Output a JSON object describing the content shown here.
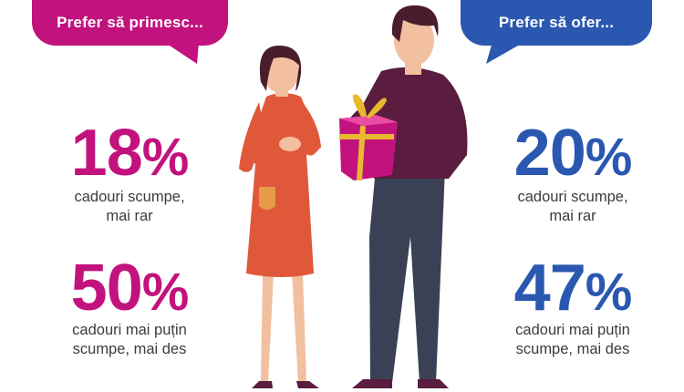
{
  "left": {
    "bubble": "Prefer să primesc...",
    "stats": [
      {
        "value": "18",
        "symbol": "%",
        "line1": "cadouri scumpe,",
        "line2": "mai rar"
      },
      {
        "value": "50",
        "symbol": "%",
        "line1": "cadouri mai puțin",
        "line2": "scumpe, mai des"
      }
    ]
  },
  "right": {
    "bubble": "Prefer să ofer...",
    "stats": [
      {
        "value": "20",
        "symbol": "%",
        "line1": "cadouri scumpe,",
        "line2": "mai rar"
      },
      {
        "value": "47",
        "symbol": "%",
        "line1": "cadouri mai puțin",
        "line2": "scumpe, mai des"
      }
    ]
  },
  "colors": {
    "magenta": "#c2127d",
    "blue": "#2a58b0",
    "woman_dress": "#e0583a",
    "man_sweater": "#5a1c3f",
    "man_pants": "#3a4154",
    "gift": "#c2127d",
    "ribbon": "#e8b92f"
  },
  "icons": [
    "speech-bubble-left",
    "speech-bubble-right",
    "woman-illustration",
    "man-illustration",
    "gift-box"
  ]
}
